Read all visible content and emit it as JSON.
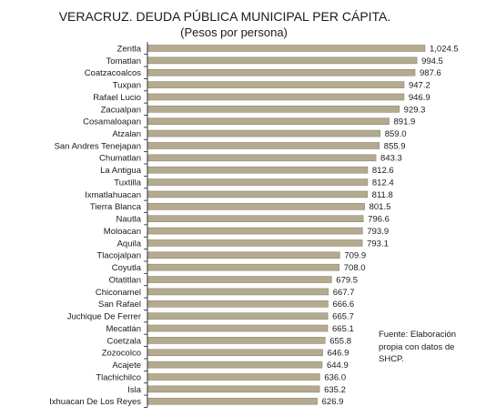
{
  "chart_data": {
    "type": "bar",
    "orientation": "horizontal",
    "title": "VERACRUZ. DEUDA PÚBLICA MUNICIPAL PER CÁPITA.",
    "subtitle": "(Pesos por persona)",
    "categories": [
      "Zentla",
      "Tomatlan",
      "Coatzacoalcos",
      "Tuxpan",
      "Rafael Lucio",
      "Zacualpan",
      "Cosamaloapan",
      "Atzalan",
      "San Andres Tenejapan",
      "Chumatlan",
      "La Antigua",
      "Tuxtilla",
      "Ixmatlahuacan",
      "Tierra Blanca",
      "Nautla",
      "Moloacan",
      "Aquila",
      "Tlacojalpan",
      "Coyutla",
      "Otatitlan",
      "Chiconamel",
      "San Rafael",
      "Juchique De Ferrer",
      "Mecatlán",
      "Coetzala",
      "Zozocolco",
      "Acajete",
      "Tlachichilco",
      "Isla",
      "Ixhuacan De Los Reyes"
    ],
    "values": [
      1024.5,
      994.5,
      987.6,
      947.2,
      946.9,
      929.3,
      891.9,
      859.0,
      855.9,
      843.3,
      812.6,
      812.4,
      811.8,
      801.5,
      796.6,
      793.9,
      793.1,
      709.9,
      708.0,
      679.5,
      667.7,
      666.6,
      665.7,
      665.1,
      655.8,
      646.9,
      644.9,
      636.0,
      635.2,
      626.9
    ],
    "value_labels": [
      "1,024.5",
      "994.5",
      "987.6",
      "947.2",
      "946.9",
      "929.3",
      "891.9",
      "859.0",
      "855.9",
      "843.3",
      "812.6",
      "812.4",
      "811.8",
      "801.5",
      "796.6",
      "793.9",
      "793.1",
      "709.9",
      "708.0",
      "679.5",
      "667.7",
      "666.6",
      "665.7",
      "665.1",
      "655.8",
      "646.9",
      "644.9",
      "636.0",
      "635.2",
      "626.9"
    ],
    "xlim": [
      0,
      1024.5
    ],
    "grid": false,
    "legend": "none",
    "colors": {
      "bar": "#b3aa90",
      "bar_edge": "#8f876d",
      "axis": "#333333",
      "tick": "#222222"
    }
  },
  "note": "Fuente: Elaboración propia con datos de SHCP."
}
